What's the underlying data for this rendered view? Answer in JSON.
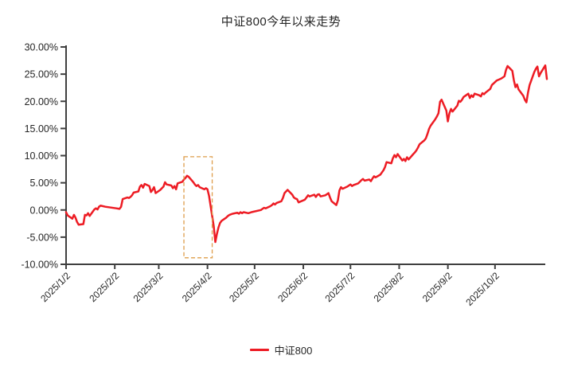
{
  "chart_data": {
    "type": "line",
    "title": "中证800今年以来走势",
    "xlabel": "",
    "ylabel": "",
    "grid": false,
    "legend_position": "bottom-center",
    "y_axis": {
      "min": -10,
      "max": 30,
      "step": 5,
      "tick_format": "percent_2dp",
      "tick_labels": [
        "-10.00%",
        "-5.00%",
        "0.00%",
        "5.00%",
        "10.00%",
        "15.00%",
        "20.00%",
        "25.00%",
        "30.00%"
      ]
    },
    "x_axis": {
      "year": "2025",
      "tick_labels": [
        "2025/1/2",
        "2025/2/2",
        "2025/3/2",
        "2025/4/2",
        "2025/5/2",
        "2025/6/2",
        "2025/7/2",
        "2025/8/2",
        "2025/9/2",
        "2025/10/2"
      ],
      "label_rotation_deg": -45
    },
    "colors": {
      "line": "#ED1C24",
      "highlight_box": "#DE9D4A",
      "axis": "#3F3F3F",
      "text": "#262626"
    },
    "highlight_box": {
      "from_date": "3/18",
      "to_date": "4/5",
      "top_value": 9.8,
      "bottom_value": -8.8,
      "style": "dashed"
    },
    "series": [
      {
        "name": "中证800",
        "color": "#ED1C24",
        "points": [
          [
            "1/2",
            -0.4
          ],
          [
            "1/3",
            -1.0
          ],
          [
            "1/6",
            -1.6
          ],
          [
            "1/7",
            -0.9
          ],
          [
            "1/8",
            -1.4
          ],
          [
            "1/9",
            -2.2
          ],
          [
            "1/10",
            -2.7
          ],
          [
            "1/13",
            -2.6
          ],
          [
            "1/14",
            -0.9
          ],
          [
            "1/15",
            -1.0
          ],
          [
            "1/16",
            -0.6
          ],
          [
            "1/17",
            -1.1
          ],
          [
            "1/20",
            0.1
          ],
          [
            "1/21",
            0.3
          ],
          [
            "1/22",
            0.1
          ],
          [
            "1/23",
            0.6
          ],
          [
            "1/24",
            0.8
          ],
          [
            "1/27",
            0.6
          ],
          [
            "2/3",
            0.3
          ],
          [
            "2/5",
            0.2
          ],
          [
            "2/6",
            0.6
          ],
          [
            "2/7",
            2.0
          ],
          [
            "2/10",
            2.3
          ],
          [
            "2/11",
            2.2
          ],
          [
            "2/12",
            2.4
          ],
          [
            "2/13",
            2.7
          ],
          [
            "2/14",
            3.2
          ],
          [
            "2/17",
            3.4
          ],
          [
            "2/18",
            4.3
          ],
          [
            "2/19",
            4.6
          ],
          [
            "2/20",
            4.1
          ],
          [
            "2/21",
            4.8
          ],
          [
            "2/24",
            4.4
          ],
          [
            "2/25",
            3.3
          ],
          [
            "2/26",
            3.7
          ],
          [
            "2/27",
            4.2
          ],
          [
            "2/28",
            3.1
          ],
          [
            "3/3",
            3.7
          ],
          [
            "3/4",
            4.0
          ],
          [
            "3/5",
            4.3
          ],
          [
            "3/6",
            5.1
          ],
          [
            "3/7",
            4.7
          ],
          [
            "3/10",
            4.5
          ],
          [
            "3/11",
            4.0
          ],
          [
            "3/12",
            4.4
          ],
          [
            "3/13",
            3.8
          ],
          [
            "3/14",
            4.9
          ],
          [
            "3/17",
            5.2
          ],
          [
            "3/18",
            5.6
          ],
          [
            "3/19",
            5.9
          ],
          [
            "3/20",
            6.3
          ],
          [
            "3/21",
            6.1
          ],
          [
            "3/24",
            5.1
          ],
          [
            "3/25",
            4.7
          ],
          [
            "3/26",
            4.4
          ],
          [
            "3/27",
            4.6
          ],
          [
            "3/28",
            4.2
          ],
          [
            "3/31",
            3.8
          ],
          [
            "4/1",
            4.0
          ],
          [
            "4/2",
            3.8
          ],
          [
            "4/3",
            2.6
          ],
          [
            "4/6",
            -3.0
          ],
          [
            "4/7",
            -5.9
          ],
          [
            "4/8",
            -4.4
          ],
          [
            "4/9",
            -3.2
          ],
          [
            "4/10",
            -2.4
          ],
          [
            "4/11",
            -2.0
          ],
          [
            "4/14",
            -1.4
          ],
          [
            "4/15",
            -1.1
          ],
          [
            "4/16",
            -0.9
          ],
          [
            "4/17",
            -0.8
          ],
          [
            "4/18",
            -0.7
          ],
          [
            "4/21",
            -0.5
          ],
          [
            "4/22",
            -0.7
          ],
          [
            "4/23",
            -0.4
          ],
          [
            "4/24",
            -0.6
          ],
          [
            "4/25",
            -0.4
          ],
          [
            "4/28",
            -0.6
          ],
          [
            "4/29",
            -0.5
          ],
          [
            "4/30",
            -0.4
          ],
          [
            "5/6",
            0.0
          ],
          [
            "5/7",
            0.2
          ],
          [
            "5/8",
            0.4
          ],
          [
            "5/9",
            0.3
          ],
          [
            "5/12",
            0.7
          ],
          [
            "5/13",
            0.9
          ],
          [
            "5/14",
            1.2
          ],
          [
            "5/15",
            1.0
          ],
          [
            "5/16",
            1.3
          ],
          [
            "5/19",
            1.6
          ],
          [
            "5/20",
            2.2
          ],
          [
            "5/21",
            3.1
          ],
          [
            "5/22",
            3.4
          ],
          [
            "5/23",
            3.7
          ],
          [
            "5/26",
            2.8
          ],
          [
            "5/27",
            2.3
          ],
          [
            "5/28",
            2.1
          ],
          [
            "5/29",
            2.0
          ],
          [
            "5/30",
            1.4
          ],
          [
            "6/3",
            1.9
          ],
          [
            "6/4",
            2.3
          ],
          [
            "6/5",
            2.7
          ],
          [
            "6/6",
            2.5
          ],
          [
            "6/9",
            2.8
          ],
          [
            "6/10",
            2.4
          ],
          [
            "6/11",
            2.8
          ],
          [
            "6/12",
            2.9
          ],
          [
            "6/13",
            2.5
          ],
          [
            "6/16",
            2.7
          ],
          [
            "6/17",
            2.9
          ],
          [
            "6/18",
            3.1
          ],
          [
            "6/19",
            2.3
          ],
          [
            "6/20",
            1.6
          ],
          [
            "6/23",
            0.9
          ],
          [
            "6/24",
            1.8
          ],
          [
            "6/25",
            3.6
          ],
          [
            "6/26",
            4.2
          ],
          [
            "6/27",
            3.9
          ],
          [
            "6/30",
            4.3
          ],
          [
            "7/1",
            4.5
          ],
          [
            "7/2",
            4.7
          ],
          [
            "7/3",
            4.4
          ],
          [
            "7/4",
            4.6
          ],
          [
            "7/7",
            4.9
          ],
          [
            "7/8",
            5.2
          ],
          [
            "7/9",
            5.5
          ],
          [
            "7/10",
            5.7
          ],
          [
            "7/11",
            5.4
          ],
          [
            "7/14",
            5.6
          ],
          [
            "7/15",
            5.3
          ],
          [
            "7/16",
            5.8
          ],
          [
            "7/17",
            6.2
          ],
          [
            "7/18",
            6.0
          ],
          [
            "7/21",
            6.5
          ],
          [
            "7/22",
            6.9
          ],
          [
            "7/23",
            7.3
          ],
          [
            "7/24",
            7.9
          ],
          [
            "7/25",
            8.8
          ],
          [
            "7/28",
            8.6
          ],
          [
            "7/29",
            9.5
          ],
          [
            "7/30",
            10.1
          ],
          [
            "7/31",
            9.7
          ],
          [
            "8/1",
            10.3
          ],
          [
            "8/4",
            9.1
          ],
          [
            "8/5",
            9.4
          ],
          [
            "8/6",
            9.0
          ],
          [
            "8/7",
            9.7
          ],
          [
            "8/8",
            9.3
          ],
          [
            "8/11",
            10.3
          ],
          [
            "8/12",
            10.6
          ],
          [
            "8/13",
            11.0
          ],
          [
            "8/14",
            11.5
          ],
          [
            "8/15",
            12.1
          ],
          [
            "8/18",
            12.8
          ],
          [
            "8/19",
            13.2
          ],
          [
            "8/20",
            14.0
          ],
          [
            "8/21",
            14.9
          ],
          [
            "8/22",
            15.5
          ],
          [
            "8/25",
            16.7
          ],
          [
            "8/26",
            17.2
          ],
          [
            "8/27",
            17.8
          ],
          [
            "8/28",
            19.9
          ],
          [
            "8/29",
            20.3
          ],
          [
            "9/1",
            18.3
          ],
          [
            "9/2",
            16.3
          ],
          [
            "9/3",
            17.8
          ],
          [
            "9/4",
            18.6
          ],
          [
            "9/5",
            18.1
          ],
          [
            "9/8",
            19.2
          ],
          [
            "9/9",
            20.1
          ],
          [
            "9/10",
            19.9
          ],
          [
            "9/11",
            20.3
          ],
          [
            "9/12",
            20.8
          ],
          [
            "9/15",
            21.4
          ],
          [
            "9/16",
            20.6
          ],
          [
            "9/17",
            21.1
          ],
          [
            "9/18",
            20.8
          ],
          [
            "9/19",
            21.4
          ],
          [
            "9/22",
            21.1
          ],
          [
            "9/23",
            20.9
          ],
          [
            "9/24",
            21.5
          ],
          [
            "9/25",
            21.3
          ],
          [
            "9/26",
            21.6
          ],
          [
            "9/29",
            22.3
          ],
          [
            "9/30",
            23.0
          ],
          [
            "10/3",
            23.8
          ],
          [
            "10/6",
            24.2
          ],
          [
            "10/8",
            24.6
          ],
          [
            "10/9",
            25.8
          ],
          [
            "10/10",
            26.5
          ],
          [
            "10/13",
            25.6
          ],
          [
            "10/14",
            23.9
          ],
          [
            "10/15",
            22.6
          ],
          [
            "10/16",
            23.1
          ],
          [
            "10/17",
            22.2
          ],
          [
            "10/20",
            21.0
          ],
          [
            "10/21",
            20.3
          ],
          [
            "10/22",
            19.8
          ],
          [
            "10/23",
            21.6
          ],
          [
            "10/24",
            23.0
          ],
          [
            "10/27",
            25.4
          ],
          [
            "10/28",
            26.0
          ],
          [
            "10/29",
            26.4
          ],
          [
            "10/30",
            24.6
          ],
          [
            "10/31",
            25.2
          ],
          [
            "11/3",
            26.6
          ],
          [
            "11/4",
            24.1
          ]
        ]
      }
    ]
  }
}
